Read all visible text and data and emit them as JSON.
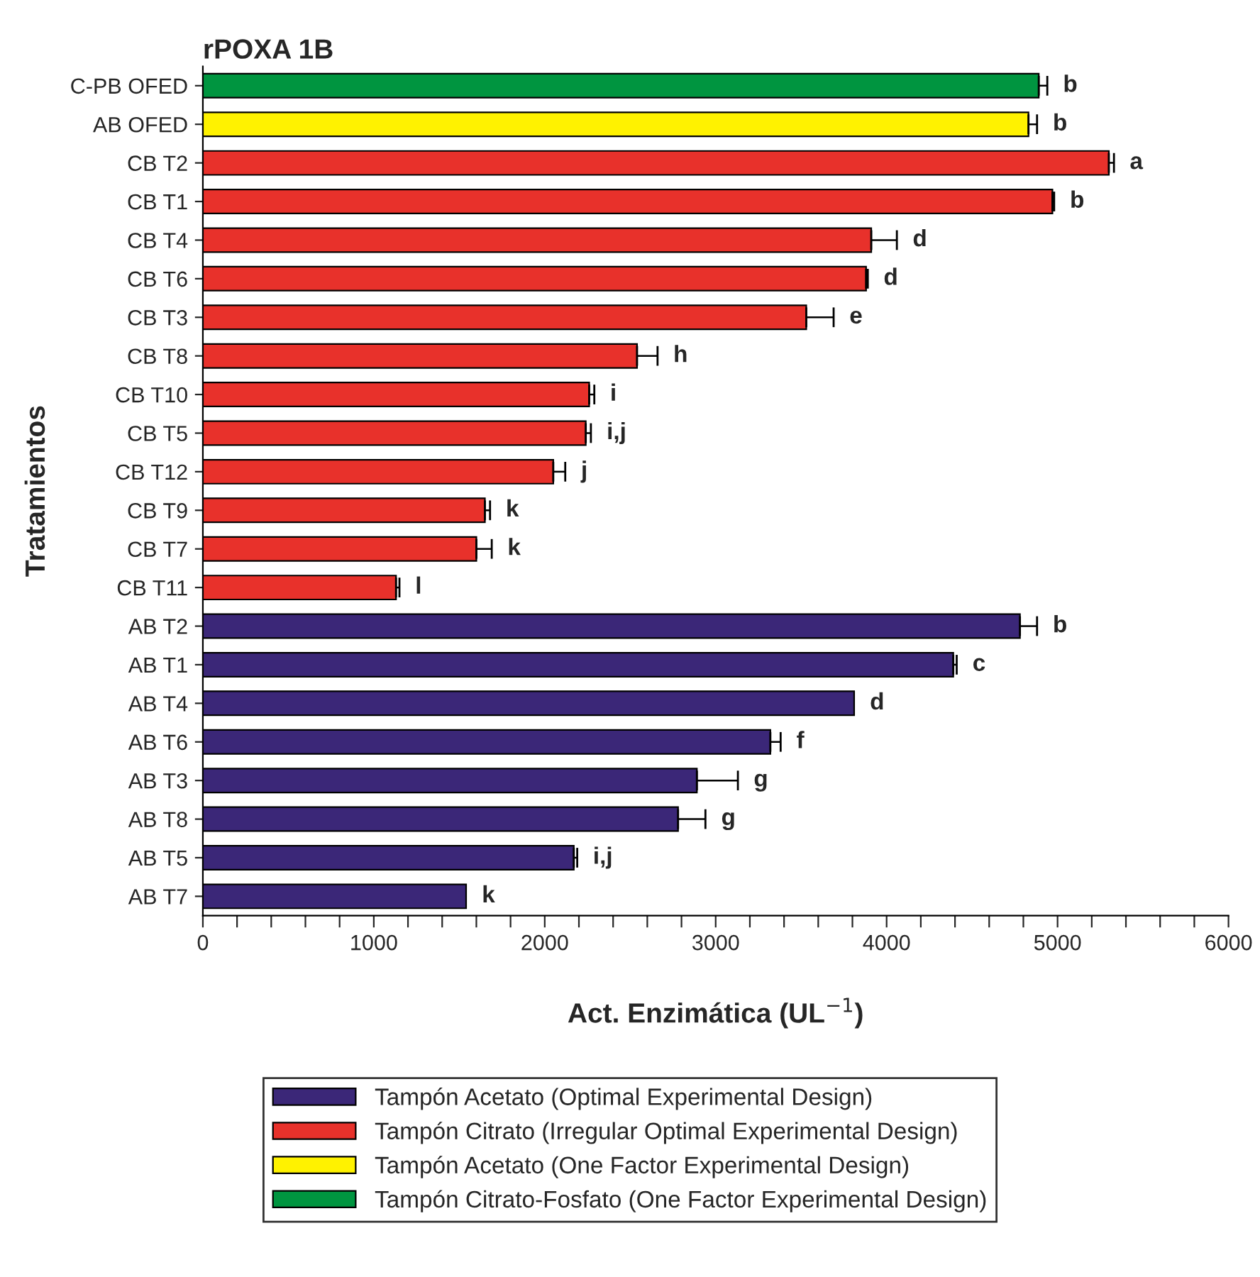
{
  "chart_data": {
    "type": "bar",
    "orientation": "horizontal",
    "title": "rPOXA 1B",
    "xlabel": "Act. Enzimática (UL$^{−1}$)",
    "ylabel": "Tratamientos",
    "categories": [
      "C-PB OFED",
      "AB OFED",
      "CB T2",
      "CB T1",
      "CB T4",
      "CB T6",
      "CB T3",
      "CB T8",
      "CB T10",
      "CB T5",
      "CB T12",
      "CB T9",
      "CB T7",
      "CB T11",
      "AB T2",
      "AB T1",
      "AB T4",
      "AB T6",
      "AB T3",
      "AB T8",
      "AB T5",
      "AB T7"
    ],
    "series": [
      {
        "name": "Tampón Acetato (Optimal Experimental Design)",
        "color": "#3b2778",
        "values": [
          null,
          null,
          null,
          null,
          null,
          null,
          null,
          null,
          null,
          null,
          null,
          null,
          null,
          null,
          4780,
          4390,
          3810,
          3320,
          2890,
          2780,
          2170,
          1540
        ],
        "errors": [
          null,
          null,
          null,
          null,
          null,
          null,
          null,
          null,
          null,
          null,
          null,
          null,
          null,
          null,
          100,
          20,
          null,
          60,
          240,
          160,
          20,
          null
        ]
      },
      {
        "name": "Tampón Citrato (Irregular Optimal Experimental Design)",
        "color": "#e8312b",
        "values": [
          null,
          null,
          5300,
          4970,
          3910,
          3880,
          3530,
          2540,
          2260,
          2240,
          2050,
          1650,
          1600,
          1130,
          null,
          null,
          null,
          null,
          null,
          null,
          null,
          null
        ],
        "errors": [
          null,
          null,
          30,
          10,
          150,
          10,
          160,
          120,
          30,
          30,
          70,
          30,
          90,
          20,
          null,
          null,
          null,
          null,
          null,
          null,
          null,
          null
        ]
      },
      {
        "name": "Tampón Acetato (One Factor Experimental Design)",
        "color": "#fff200",
        "values": [
          null,
          4830,
          null,
          null,
          null,
          null,
          null,
          null,
          null,
          null,
          null,
          null,
          null,
          null,
          null,
          null,
          null,
          null,
          null,
          null,
          null,
          null
        ],
        "errors": [
          null,
          50,
          null,
          null,
          null,
          null,
          null,
          null,
          null,
          null,
          null,
          null,
          null,
          null,
          null,
          null,
          null,
          null,
          null,
          null,
          null,
          null
        ]
      },
      {
        "name": "Tampón Citrato-Fosfato (One Factor Experimental Design)",
        "color": "#009540",
        "values": [
          4890,
          null,
          null,
          null,
          null,
          null,
          null,
          null,
          null,
          null,
          null,
          null,
          null,
          null,
          null,
          null,
          null,
          null,
          null,
          null,
          null,
          null
        ],
        "errors": [
          50,
          null,
          null,
          null,
          null,
          null,
          null,
          null,
          null,
          null,
          null,
          null,
          null,
          null,
          null,
          null,
          null,
          null,
          null,
          null,
          null,
          null
        ]
      }
    ],
    "xlim": [
      0,
      6000
    ],
    "xticks": [
      0,
      {
        "value": 200,
        "label": null
      },
      {
        "value": 400,
        "label": null
      },
      {
        "value": 600,
        "label": null
      },
      {
        "value": 800,
        "label": null
      },
      1000,
      {
        "value": 1200,
        "label": null
      },
      {
        "value": 1400,
        "label": null
      },
      {
        "value": 1600,
        "label": null
      },
      {
        "value": 1800,
        "label": null
      },
      2000,
      {
        "value": 2200,
        "label": null
      },
      {
        "value": 2400,
        "label": null
      },
      {
        "value": 2600,
        "label": null
      },
      {
        "value": 2800,
        "label": null
      },
      3000,
      {
        "value": 3200,
        "label": null
      },
      {
        "value": 3400,
        "label": null
      },
      {
        "value": 3600,
        "label": null
      },
      {
        "value": 3800,
        "label": null
      },
      4000,
      {
        "value": 4200,
        "label": null
      },
      {
        "value": 4400,
        "label": null
      },
      {
        "value": 4600,
        "label": null
      },
      {
        "value": 4800,
        "label": null
      },
      5000,
      {
        "value": 5200,
        "label": null
      },
      {
        "value": 5400,
        "label": null
      },
      {
        "value": 5600,
        "label": null
      },
      {
        "value": 5800,
        "label": null
      },
      6000
    ],
    "annotations": [
      {
        "text": "b",
        "x": 4940,
        "y": "C-PB OFED"
      },
      {
        "text": "b",
        "x": 4880,
        "y": "AB OFED"
      },
      {
        "text": "a",
        "x": 5330,
        "y": "CB T2"
      },
      {
        "text": "b",
        "x": 4980,
        "y": "CB T1"
      },
      {
        "text": "d",
        "x": 4060,
        "y": "CB T4"
      },
      {
        "text": "d",
        "x": 3890,
        "y": "CB T6"
      },
      {
        "text": "e",
        "x": 3690,
        "y": "CB T3"
      },
      {
        "text": "h",
        "x": 2660,
        "y": "CB T8"
      },
      {
        "text": "i",
        "x": 2290,
        "y": "CB T10"
      },
      {
        "text": "i,j",
        "x": 2270,
        "y": "CB T5"
      },
      {
        "text": "j",
        "x": 2120,
        "y": "CB T12"
      },
      {
        "text": "k",
        "x": 1680,
        "y": "CB T9"
      },
      {
        "text": "k",
        "x": 1690,
        "y": "CB T7"
      },
      {
        "text": "l",
        "x": 1150,
        "y": "CB T11"
      },
      {
        "text": "b",
        "x": 4880,
        "y": "AB T2"
      },
      {
        "text": "c",
        "x": 4410,
        "y": "AB T1"
      },
      {
        "text": "d",
        "x": 3810,
        "y": "AB T4"
      },
      {
        "text": "f",
        "x": 3380,
        "y": "AB T6"
      },
      {
        "text": "g",
        "x": 3130,
        "y": "AB T3"
      },
      {
        "text": "g",
        "x": 2940,
        "y": "AB T8"
      },
      {
        "text": "i,j",
        "x": 2190,
        "y": "AB T5"
      },
      {
        "text": "k",
        "x": 1540,
        "y": "AB T7"
      }
    ],
    "grid": false,
    "legend": "bottom"
  }
}
